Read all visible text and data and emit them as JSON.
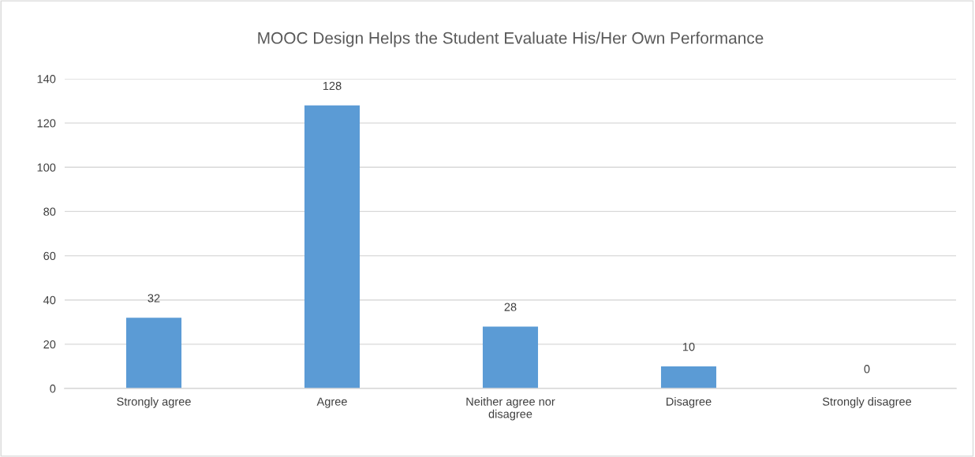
{
  "chart_data": {
    "type": "bar",
    "title": "MOOC Design Helps the Student Evaluate His/Her Own Performance",
    "categories": [
      "Strongly agree",
      "Agree",
      "Neither agree nor disagree",
      "Disagree",
      "Strongly disagree"
    ],
    "values": [
      32,
      128,
      28,
      10,
      0
    ],
    "color": "#5b9bd5",
    "ylim": [
      0,
      140
    ],
    "yticks": [
      0,
      20,
      40,
      60,
      80,
      100,
      120,
      140
    ],
    "grid": "y",
    "data_labels": true,
    "legend": false
  }
}
